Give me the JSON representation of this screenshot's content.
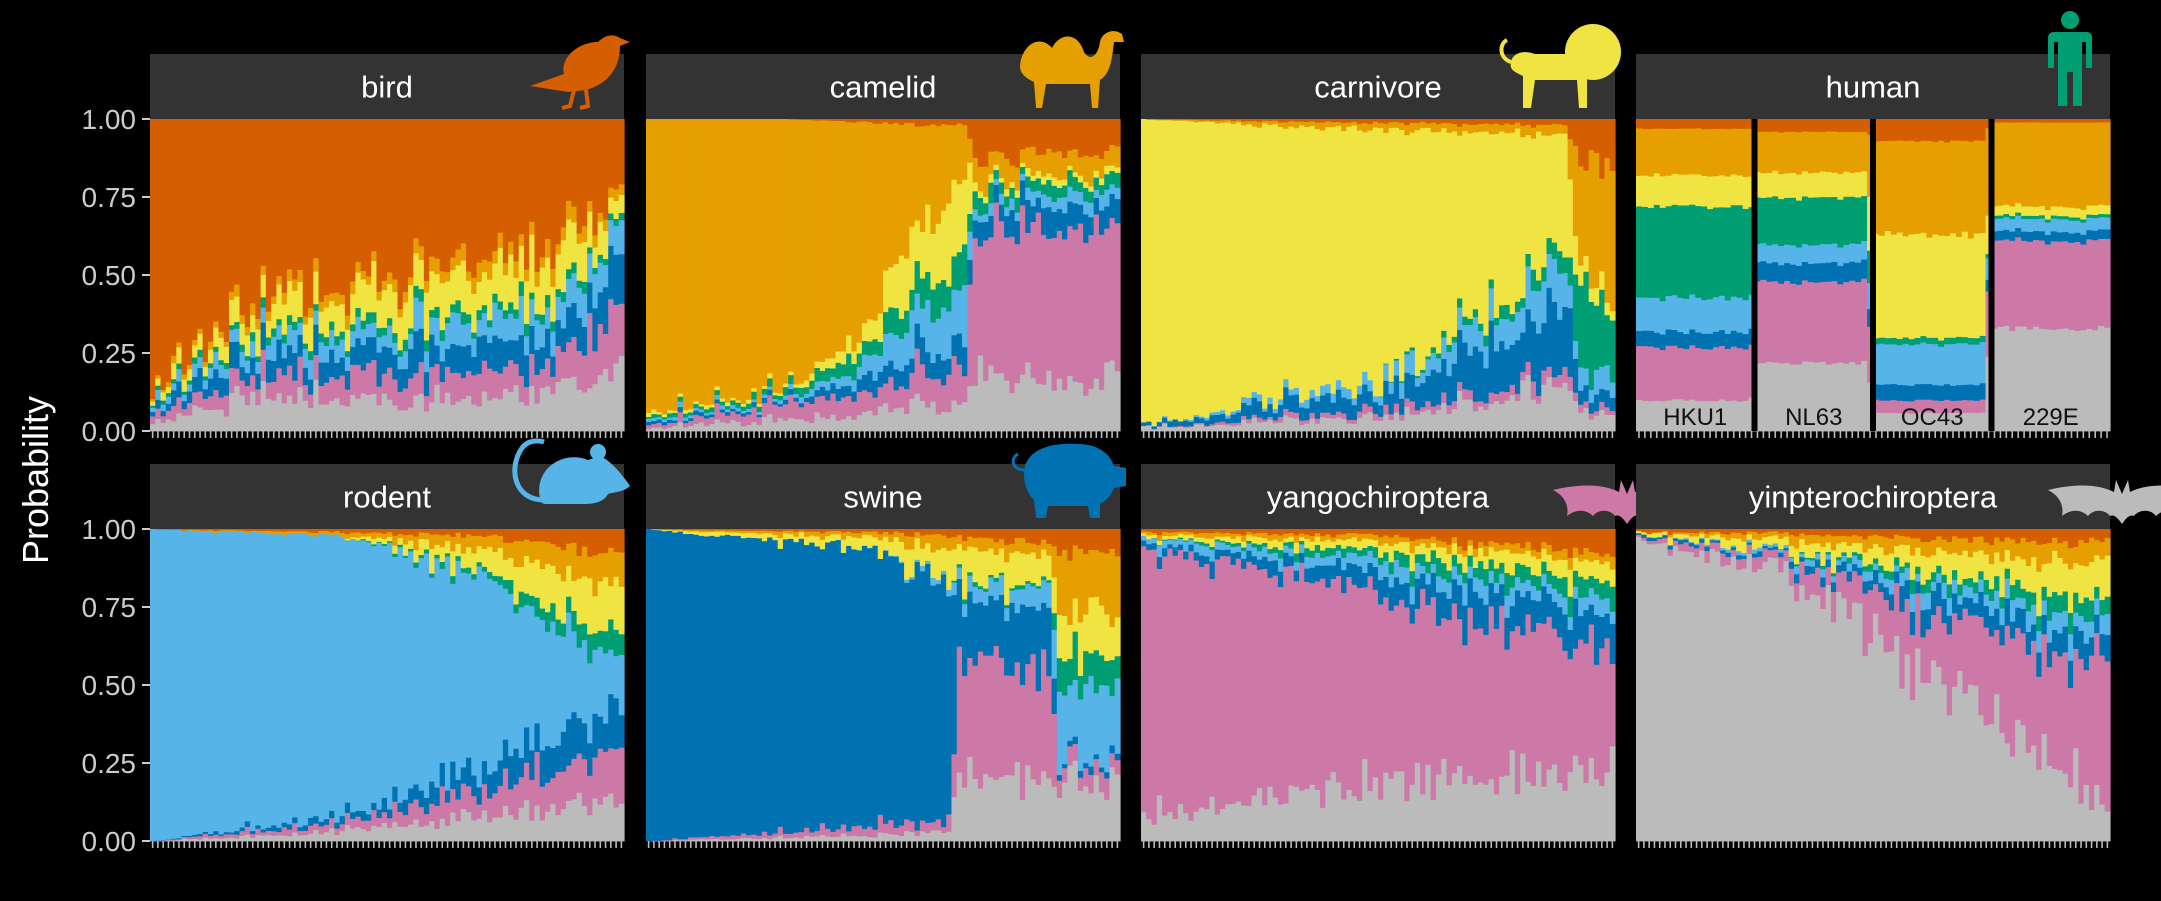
{
  "chart_data": {
    "type": "bar",
    "stacked": true,
    "normalized": true,
    "ylabel": "Probability",
    "ylim": [
      0,
      1
    ],
    "yticks": [
      "0.00",
      "0.25",
      "0.50",
      "0.75",
      "1.00"
    ],
    "grid": false,
    "legend": "none",
    "layer_order_bottom_to_top": [
      "yinpterochiroptera",
      "yangochiroptera",
      "swine",
      "rodent",
      "human",
      "carnivore",
      "camelid",
      "bird"
    ],
    "colors": {
      "bird": "#d55e00",
      "camelid": "#e69f00",
      "carnivore": "#f0e442",
      "human": "#009e73",
      "rodent": "#56b4e9",
      "swine": "#0072b2",
      "yangochiroptera": "#cc79a7",
      "yinpterochiroptera": "#bbbbbb"
    },
    "panels": [
      {
        "label": "bird",
        "icon": "bird-icon",
        "icon_color": "#d55e00",
        "n_bars": 90,
        "profiles": [
          {
            "t": 0.0,
            "v": {
              "yinpterochiroptera": 0.02,
              "yangochiroptera": 0.02,
              "swine": 0.02,
              "rodent": 0.02,
              "human": 0.01,
              "carnivore": 0.02,
              "camelid": 0.01,
              "bird": 0.88
            }
          },
          {
            "t": 0.2,
            "v": {
              "yinpterochiroptera": 0.1,
              "yangochiroptera": 0.07,
              "swine": 0.07,
              "rodent": 0.05,
              "human": 0.02,
              "carnivore": 0.07,
              "camelid": 0.03,
              "bird": 0.59
            }
          },
          {
            "t": 0.5,
            "v": {
              "yinpterochiroptera": 0.1,
              "yangochiroptera": 0.08,
              "swine": 0.08,
              "rodent": 0.06,
              "human": 0.03,
              "carnivore": 0.12,
              "camelid": 0.04,
              "bird": 0.49
            }
          },
          {
            "t": 0.85,
            "v": {
              "yinpterochiroptera": 0.12,
              "yangochiroptera": 0.08,
              "swine": 0.09,
              "rodent": 0.09,
              "human": 0.03,
              "carnivore": 0.14,
              "camelid": 0.05,
              "bird": 0.4
            }
          },
          {
            "t": 1.0,
            "v": {
              "yinpterochiroptera": 0.18,
              "yangochiroptera": 0.22,
              "swine": 0.14,
              "rodent": 0.1,
              "human": 0.02,
              "carnivore": 0.06,
              "camelid": 0.03,
              "bird": 0.25
            }
          }
        ]
      },
      {
        "label": "camelid",
        "icon": "camel-icon",
        "icon_color": "#e69f00",
        "n_bars": 90,
        "profiles": [
          {
            "t": 0.0,
            "v": {
              "yinpterochiroptera": 0.01,
              "yangochiroptera": 0.01,
              "swine": 0.01,
              "rodent": 0.01,
              "human": 0.01,
              "carnivore": 0.01,
              "camelid": 0.94,
              "bird": 0.0
            }
          },
          {
            "t": 0.3,
            "v": {
              "yinpterochiroptera": 0.04,
              "yangochiroptera": 0.05,
              "swine": 0.01,
              "rodent": 0.01,
              "human": 0.02,
              "carnivore": 0.01,
              "camelid": 0.86,
              "bird": 0.0
            }
          },
          {
            "t": 0.45,
            "v": {
              "yinpterochiroptera": 0.06,
              "yangochiroptera": 0.08,
              "swine": 0.05,
              "rodent": 0.05,
              "human": 0.06,
              "carnivore": 0.05,
              "camelid": 0.64,
              "bird": 0.01
            }
          },
          {
            "t": 0.68,
            "v": {
              "yinpterochiroptera": 0.09,
              "yangochiroptera": 0.1,
              "swine": 0.08,
              "rodent": 0.18,
              "human": 0.12,
              "carnivore": 0.27,
              "camelid": 0.14,
              "bird": 0.02
            }
          },
          {
            "t": 0.69,
            "v": {
              "yinpterochiroptera": 0.17,
              "yangochiroptera": 0.49,
              "swine": 0.07,
              "rodent": 0.03,
              "human": 0.04,
              "carnivore": 0.02,
              "camelid": 0.07,
              "bird": 0.11
            }
          },
          {
            "t": 1.0,
            "v": {
              "yinpterochiroptera": 0.16,
              "yangochiroptera": 0.5,
              "swine": 0.07,
              "rodent": 0.04,
              "human": 0.04,
              "carnivore": 0.02,
              "camelid": 0.06,
              "bird": 0.11
            }
          }
        ]
      },
      {
        "label": "carnivore",
        "icon": "lion-icon",
        "icon_color": "#f0e442",
        "n_bars": 90,
        "profiles": [
          {
            "t": 0.0,
            "v": {
              "yinpterochiroptera": 0.01,
              "yangochiroptera": 0.0,
              "swine": 0.01,
              "rodent": 0.0,
              "human": 0.0,
              "carnivore": 0.98,
              "camelid": 0.0,
              "bird": 0.0
            }
          },
          {
            "t": 0.5,
            "v": {
              "yinpterochiroptera": 0.04,
              "yangochiroptera": 0.02,
              "swine": 0.06,
              "rodent": 0.03,
              "human": 0.0,
              "carnivore": 0.82,
              "camelid": 0.02,
              "bird": 0.01
            }
          },
          {
            "t": 0.9,
            "v": {
              "yinpterochiroptera": 0.14,
              "yangochiroptera": 0.04,
              "swine": 0.22,
              "rodent": 0.12,
              "human": 0.05,
              "carnivore": 0.38,
              "camelid": 0.03,
              "bird": 0.02
            }
          },
          {
            "t": 0.93,
            "v": {
              "yinpterochiroptera": 0.06,
              "yangochiroptera": 0.02,
              "swine": 0.05,
              "rodent": 0.06,
              "human": 0.24,
              "carnivore": 0.05,
              "camelid": 0.38,
              "bird": 0.14
            }
          },
          {
            "t": 1.0,
            "v": {
              "yinpterochiroptera": 0.06,
              "yangochiroptera": 0.02,
              "swine": 0.05,
              "rodent": 0.07,
              "human": 0.23,
              "carnivore": 0.05,
              "camelid": 0.38,
              "bird": 0.14
            }
          }
        ]
      },
      {
        "label": "human",
        "icon": "person-icon",
        "icon_color": "#009e73",
        "n_bars": 80,
        "groups": [
          "HKU1",
          "NL63",
          "OC43",
          "229E"
        ],
        "profiles": [
          {
            "t": 0.0,
            "v": {
              "yinpterochiroptera": 0.1,
              "yangochiroptera": 0.17,
              "swine": 0.05,
              "rodent": 0.11,
              "human": 0.29,
              "carnivore": 0.1,
              "camelid": 0.15,
              "bird": 0.03
            }
          },
          {
            "t": 0.24,
            "v": {
              "yinpterochiroptera": 0.1,
              "yangochiroptera": 0.17,
              "swine": 0.05,
              "rodent": 0.11,
              "human": 0.29,
              "carnivore": 0.1,
              "camelid": 0.15,
              "bird": 0.03
            }
          },
          {
            "t": 0.25,
            "v": {
              "yinpterochiroptera": 0.22,
              "yangochiroptera": 0.26,
              "swine": 0.06,
              "rodent": 0.06,
              "human": 0.15,
              "carnivore": 0.08,
              "camelid": 0.13,
              "bird": 0.04
            }
          },
          {
            "t": 0.49,
            "v": {
              "yinpterochiroptera": 0.22,
              "yangochiroptera": 0.26,
              "swine": 0.06,
              "rodent": 0.06,
              "human": 0.15,
              "carnivore": 0.08,
              "camelid": 0.13,
              "bird": 0.04
            }
          },
          {
            "t": 0.5,
            "v": {
              "yinpterochiroptera": 0.06,
              "yangochiroptera": 0.04,
              "swine": 0.05,
              "rodent": 0.13,
              "human": 0.02,
              "carnivore": 0.33,
              "camelid": 0.3,
              "bird": 0.07
            }
          },
          {
            "t": 0.74,
            "v": {
              "yinpterochiroptera": 0.06,
              "yangochiroptera": 0.04,
              "swine": 0.05,
              "rodent": 0.13,
              "human": 0.02,
              "carnivore": 0.33,
              "camelid": 0.3,
              "bird": 0.07
            }
          },
          {
            "t": 0.75,
            "v": {
              "yinpterochiroptera": 0.33,
              "yangochiroptera": 0.28,
              "swine": 0.03,
              "rodent": 0.04,
              "human": 0.01,
              "carnivore": 0.03,
              "camelid": 0.27,
              "bird": 0.01
            }
          },
          {
            "t": 1.0,
            "v": {
              "yinpterochiroptera": 0.33,
              "yangochiroptera": 0.28,
              "swine": 0.03,
              "rodent": 0.04,
              "human": 0.01,
              "carnivore": 0.03,
              "camelid": 0.27,
              "bird": 0.01
            }
          }
        ]
      },
      {
        "label": "rodent",
        "icon": "rat-icon",
        "icon_color": "#56b4e9",
        "n_bars": 90,
        "profiles": [
          {
            "t": 0.0,
            "v": {
              "yinpterochiroptera": 0.0,
              "yangochiroptera": 0.0,
              "swine": 0.0,
              "rodent": 1.0,
              "human": 0.0,
              "carnivore": 0.0,
              "camelid": 0.0,
              "bird": 0.0
            }
          },
          {
            "t": 0.4,
            "v": {
              "yinpterochiroptera": 0.03,
              "yangochiroptera": 0.03,
              "swine": 0.02,
              "rodent": 0.9,
              "human": 0.0,
              "carnivore": 0.0,
              "camelid": 0.01,
              "bird": 0.01
            }
          },
          {
            "t": 0.7,
            "v": {
              "yinpterochiroptera": 0.08,
              "yangochiroptera": 0.08,
              "swine": 0.07,
              "rodent": 0.62,
              "human": 0.02,
              "carnivore": 0.07,
              "camelid": 0.04,
              "bird": 0.02
            }
          },
          {
            "t": 1.0,
            "v": {
              "yinpterochiroptera": 0.12,
              "yangochiroptera": 0.16,
              "swine": 0.14,
              "rodent": 0.15,
              "human": 0.08,
              "carnivore": 0.15,
              "camelid": 0.12,
              "bird": 0.08
            }
          }
        ]
      },
      {
        "label": "swine",
        "icon": "pig-icon",
        "icon_color": "#0072b2",
        "n_bars": 90,
        "profiles": [
          {
            "t": 0.0,
            "v": {
              "yinpterochiroptera": 0.0,
              "yangochiroptera": 0.0,
              "swine": 1.0,
              "rodent": 0.0,
              "human": 0.0,
              "carnivore": 0.0,
              "camelid": 0.0,
              "bird": 0.0
            }
          },
          {
            "t": 0.5,
            "v": {
              "yinpterochiroptera": 0.02,
              "yangochiroptera": 0.03,
              "swine": 0.88,
              "rodent": 0.0,
              "human": 0.0,
              "carnivore": 0.04,
              "camelid": 0.02,
              "bird": 0.01
            }
          },
          {
            "t": 0.64,
            "v": {
              "yinpterochiroptera": 0.03,
              "yangochiroptera": 0.03,
              "swine": 0.76,
              "rodent": 0.02,
              "human": 0.0,
              "carnivore": 0.1,
              "camelid": 0.04,
              "bird": 0.02
            }
          },
          {
            "t": 0.66,
            "v": {
              "yinpterochiroptera": 0.2,
              "yangochiroptera": 0.35,
              "swine": 0.22,
              "rodent": 0.05,
              "human": 0.01,
              "carnivore": 0.1,
              "camelid": 0.04,
              "bird": 0.03
            }
          },
          {
            "t": 0.86,
            "v": {
              "yinpterochiroptera": 0.19,
              "yangochiroptera": 0.38,
              "swine": 0.18,
              "rodent": 0.06,
              "human": 0.01,
              "carnivore": 0.1,
              "camelid": 0.04,
              "bird": 0.04
            }
          },
          {
            "t": 0.87,
            "v": {
              "yinpterochiroptera": 0.19,
              "yangochiroptera": 0.06,
              "swine": 0.02,
              "rodent": 0.22,
              "human": 0.11,
              "carnivore": 0.14,
              "camelid": 0.19,
              "bird": 0.07
            }
          },
          {
            "t": 1.0,
            "v": {
              "yinpterochiroptera": 0.19,
              "yangochiroptera": 0.06,
              "swine": 0.02,
              "rodent": 0.22,
              "human": 0.11,
              "carnivore": 0.14,
              "camelid": 0.19,
              "bird": 0.07
            }
          }
        ]
      },
      {
        "label": "yangochiroptera",
        "icon": "bat-icon",
        "icon_color": "#cc79a7",
        "n_bars": 90,
        "profiles": [
          {
            "t": 0.0,
            "v": {
              "yinpterochiroptera": 0.09,
              "yangochiroptera": 0.84,
              "swine": 0.02,
              "rodent": 0.02,
              "human": 0.0,
              "carnivore": 0.01,
              "camelid": 0.01,
              "bird": 0.01
            }
          },
          {
            "t": 0.5,
            "v": {
              "yinpterochiroptera": 0.18,
              "yangochiroptera": 0.62,
              "swine": 0.06,
              "rodent": 0.04,
              "human": 0.03,
              "carnivore": 0.03,
              "camelid": 0.02,
              "bird": 0.02
            }
          },
          {
            "t": 1.0,
            "v": {
              "yinpterochiroptera": 0.24,
              "yangochiroptera": 0.36,
              "swine": 0.12,
              "rodent": 0.05,
              "human": 0.06,
              "carnivore": 0.06,
              "camelid": 0.03,
              "bird": 0.08
            }
          }
        ]
      },
      {
        "label": "yinpterochiroptera",
        "icon": "bat-icon",
        "icon_color": "#bbbbbb",
        "n_bars": 90,
        "profiles": [
          {
            "t": 0.0,
            "v": {
              "yinpterochiroptera": 0.96,
              "yangochiroptera": 0.01,
              "swine": 0.01,
              "rodent": 0.0,
              "human": 0.0,
              "carnivore": 0.01,
              "camelid": 0.0,
              "bird": 0.01
            }
          },
          {
            "t": 0.3,
            "v": {
              "yinpterochiroptera": 0.88,
              "yangochiroptera": 0.04,
              "swine": 0.01,
              "rodent": 0.01,
              "human": 0.0,
              "carnivore": 0.03,
              "camelid": 0.02,
              "bird": 0.01
            }
          },
          {
            "t": 0.6,
            "v": {
              "yinpterochiroptera": 0.55,
              "yangochiroptera": 0.18,
              "swine": 0.06,
              "rodent": 0.04,
              "human": 0.03,
              "carnivore": 0.07,
              "camelid": 0.04,
              "bird": 0.03
            }
          },
          {
            "t": 1.0,
            "v": {
              "yinpterochiroptera": 0.13,
              "yangochiroptera": 0.44,
              "swine": 0.08,
              "rodent": 0.06,
              "human": 0.06,
              "carnivore": 0.12,
              "camelid": 0.07,
              "bird": 0.04
            }
          }
        ]
      }
    ]
  }
}
